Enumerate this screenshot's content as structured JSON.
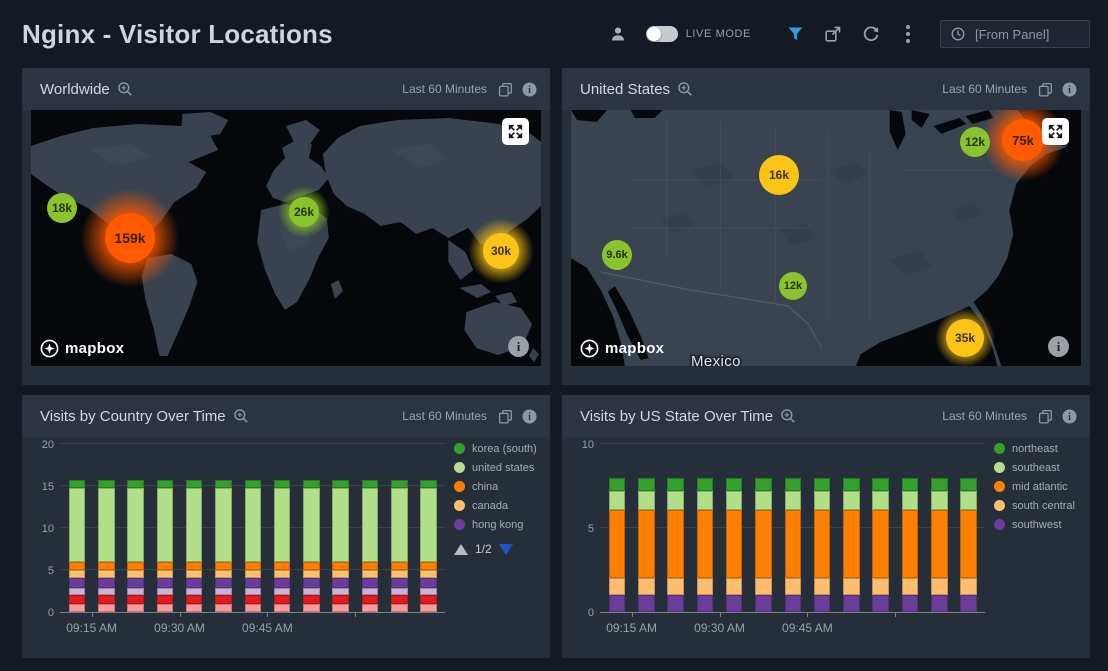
{
  "header": {
    "title": "Nginx - Visitor Locations",
    "live_mode_label": "LIVE MODE",
    "time_picker_value": "[From Panel]",
    "accent_color": "#2d9ddb"
  },
  "bubble_colors": {
    "green": "#8bc32c",
    "yellow": "#fcc417",
    "orange": "#ff5a00"
  },
  "maps": {
    "worldwide": {
      "title": "Worldwide",
      "time_range": "Last 60 Minutes",
      "attribution": "mapbox",
      "bubbles": [
        {
          "label": "18k",
          "x": 31,
          "y": 98,
          "d": 30,
          "glow": 0,
          "color": "green",
          "fs": 12
        },
        {
          "label": "159k",
          "x": 99,
          "y": 128,
          "d": 50,
          "glow": 100,
          "color": "orange",
          "fs": 14
        },
        {
          "label": "26k",
          "x": 273,
          "y": 102,
          "d": 30,
          "glow": 52,
          "color": "green",
          "fs": 12
        },
        {
          "label": "30k",
          "x": 470,
          "y": 141,
          "d": 36,
          "glow": 66,
          "color": "yellow",
          "fs": 12
        }
      ]
    },
    "united_states": {
      "title": "United States",
      "time_range": "Last 60 Minutes",
      "attribution": "mapbox",
      "region_label": "Mexico",
      "bubbles": [
        {
          "label": "12k",
          "x": 404,
          "y": 32,
          "d": 30,
          "glow": 0,
          "color": "green",
          "fs": 12
        },
        {
          "label": "75k",
          "x": 452,
          "y": 30,
          "d": 42,
          "glow": 84,
          "color": "orange",
          "fs": 13
        },
        {
          "label": "16k",
          "x": 208,
          "y": 65,
          "d": 40,
          "glow": 0,
          "color": "yellow",
          "fs": 12
        },
        {
          "label": "9.6k",
          "x": 46,
          "y": 145,
          "d": 30,
          "glow": 0,
          "color": "green",
          "fs": 11
        },
        {
          "label": "12k",
          "x": 222,
          "y": 176,
          "d": 28,
          "glow": 0,
          "color": "green",
          "fs": 11
        },
        {
          "label": "35k",
          "x": 394,
          "y": 228,
          "d": 38,
          "glow": 60,
          "color": "yellow",
          "fs": 12
        }
      ]
    }
  },
  "chart_data": [
    {
      "type": "bar",
      "stacked": true,
      "title": "Visits by Country Over Time",
      "time_range": "Last 60 Minutes",
      "bars": 13,
      "x_tick_labels": [
        "09:15 AM",
        "09:30 AM",
        "09:45 AM",
        ""
      ],
      "ylim": [
        0,
        20
      ],
      "yticks": [
        0,
        5,
        10,
        15,
        20
      ],
      "grid": true,
      "legend_position": "right",
      "series_bottom_to_top": [
        {
          "name": "",
          "color": "#fb9a99",
          "value_per_bar": 0.9
        },
        {
          "name": "",
          "color": "#e31a1c",
          "value_per_bar": 1.1
        },
        {
          "name": "",
          "color": "#cab2d6",
          "value_per_bar": 0.9
        },
        {
          "name": "hong kong",
          "color": "#6a3d9a",
          "value_per_bar": 1.1
        },
        {
          "name": "canada",
          "color": "#fdbf6f",
          "value_per_bar": 1.0
        },
        {
          "name": "china",
          "color": "#ff7f00",
          "value_per_bar": 1.0
        },
        {
          "name": "united states",
          "color": "#b2df8a",
          "value_per_bar": 8.8
        },
        {
          "name": "korea (south)",
          "color": "#33a02c",
          "value_per_bar": 0.9
        }
      ],
      "legend": [
        {
          "label": "korea (south)",
          "color": "#33a02c"
        },
        {
          "label": "united states",
          "color": "#b2df8a"
        },
        {
          "label": "china",
          "color": "#ff7f00"
        },
        {
          "label": "canada",
          "color": "#fdbf6f"
        },
        {
          "label": "hong kong",
          "color": "#6a3d9a"
        }
      ],
      "legend_pagination": "1/2"
    },
    {
      "type": "bar",
      "stacked": true,
      "title": "Visits by US State Over Time",
      "time_range": "Last 60 Minutes",
      "bars": 13,
      "x_tick_labels": [
        "09:15 AM",
        "09:30 AM",
        "09:45 AM",
        ""
      ],
      "ylim": [
        0,
        10
      ],
      "yticks": [
        0,
        5,
        10
      ],
      "grid": true,
      "legend_position": "right",
      "series_bottom_to_top": [
        {
          "name": "southwest",
          "color": "#6a3d9a",
          "value_per_bar": 1.0
        },
        {
          "name": "south central",
          "color": "#fdbf6f",
          "value_per_bar": 1.0
        },
        {
          "name": "mid atlantic",
          "color": "#ff7f00",
          "value_per_bar": 4.1
        },
        {
          "name": "southeast",
          "color": "#b2df8a",
          "value_per_bar": 1.1
        },
        {
          "name": "northeast",
          "color": "#33a02c",
          "value_per_bar": 0.8
        }
      ],
      "legend": [
        {
          "label": "northeast",
          "color": "#33a02c"
        },
        {
          "label": "southeast",
          "color": "#b2df8a"
        },
        {
          "label": "mid atlantic",
          "color": "#ff7f00"
        },
        {
          "label": "south central",
          "color": "#fdbf6f"
        },
        {
          "label": "southwest",
          "color": "#6a3d9a"
        }
      ],
      "legend_pagination": null
    }
  ]
}
